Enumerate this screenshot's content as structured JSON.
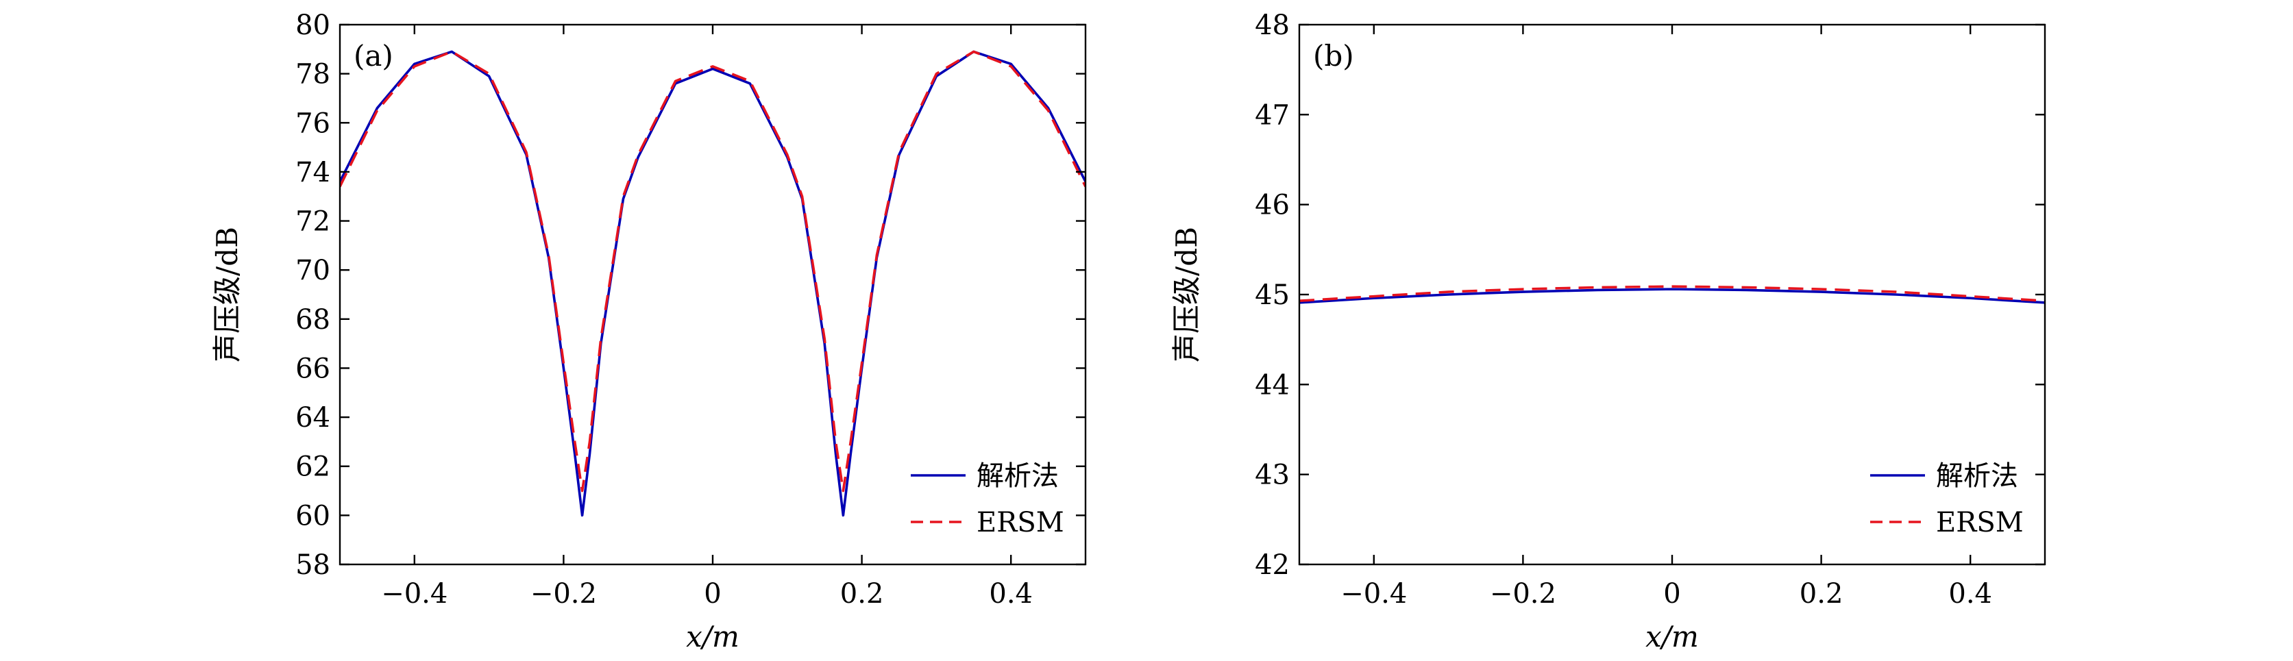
{
  "chart_data": [
    {
      "type": "line",
      "panel_label": "(a)",
      "xlabel": "x/m",
      "ylabel": "声压级/dB",
      "xlim": [
        -0.5,
        0.5
      ],
      "ylim": [
        58,
        80
      ],
      "xticks": [
        -0.4,
        -0.2,
        0,
        0.2,
        0.4
      ],
      "xtick_labels": [
        "−0.4",
        "−0.2",
        "0",
        "0.2",
        "0.4"
      ],
      "yticks": [
        58,
        60,
        62,
        64,
        66,
        68,
        70,
        72,
        74,
        76,
        78,
        80
      ],
      "ytick_labels": [
        "58",
        "60",
        "62",
        "64",
        "66",
        "68",
        "70",
        "72",
        "74",
        "76",
        "78",
        "80"
      ],
      "legend_position": "bottom-right",
      "x": [
        -0.5,
        -0.45,
        -0.4,
        -0.35,
        -0.3,
        -0.25,
        -0.22,
        -0.2,
        -0.185,
        -0.175,
        -0.165,
        -0.15,
        -0.12,
        -0.1,
        -0.05,
        0,
        0.05,
        0.1,
        0.12,
        0.15,
        0.165,
        0.175,
        0.185,
        0.2,
        0.22,
        0.25,
        0.3,
        0.35,
        0.4,
        0.45,
        0.5
      ],
      "series": [
        {
          "name": "解析法",
          "color": "#0000b4",
          "style": "solid",
          "values": [
            73.6,
            76.6,
            78.4,
            78.9,
            77.9,
            74.7,
            70.5,
            66.0,
            62.5,
            60.0,
            62.5,
            67.0,
            72.9,
            74.6,
            77.6,
            78.2,
            77.6,
            74.6,
            72.9,
            67.0,
            62.5,
            60.0,
            62.5,
            66.0,
            70.5,
            74.7,
            77.9,
            78.9,
            78.4,
            76.6,
            73.6
          ]
        },
        {
          "name": "ERSM",
          "color": "#e6141e",
          "style": "dashed",
          "values": [
            73.4,
            76.5,
            78.3,
            78.9,
            78.0,
            74.8,
            70.6,
            66.2,
            63.0,
            61.0,
            63.0,
            67.2,
            73.0,
            74.7,
            77.7,
            78.3,
            77.7,
            74.7,
            73.0,
            67.2,
            63.0,
            61.0,
            63.0,
            66.2,
            70.6,
            74.8,
            78.0,
            78.9,
            78.3,
            76.5,
            73.4
          ]
        }
      ]
    },
    {
      "type": "line",
      "panel_label": "(b)",
      "xlabel": "x/m",
      "ylabel": "声压级/dB",
      "xlim": [
        -0.5,
        0.5
      ],
      "ylim": [
        42,
        48
      ],
      "xticks": [
        -0.4,
        -0.2,
        0,
        0.2,
        0.4
      ],
      "xtick_labels": [
        "−0.4",
        "−0.2",
        "0",
        "0.2",
        "0.4"
      ],
      "yticks": [
        42,
        43,
        44,
        45,
        46,
        47,
        48
      ],
      "ytick_labels": [
        "42",
        "43",
        "44",
        "45",
        "46",
        "47",
        "48"
      ],
      "legend_position": "bottom-right",
      "x": [
        -0.5,
        -0.4,
        -0.3,
        -0.2,
        -0.1,
        0,
        0.1,
        0.2,
        0.3,
        0.4,
        0.5
      ],
      "series": [
        {
          "name": "解析法",
          "color": "#0000b4",
          "style": "solid",
          "values": [
            44.91,
            44.96,
            45.0,
            45.03,
            45.05,
            45.06,
            45.05,
            45.03,
            45.0,
            44.96,
            44.91
          ]
        },
        {
          "name": "ERSM",
          "color": "#e6141e",
          "style": "dashed",
          "values": [
            44.93,
            44.98,
            45.03,
            45.06,
            45.08,
            45.09,
            45.08,
            45.06,
            45.03,
            44.98,
            44.93
          ]
        }
      ]
    }
  ]
}
